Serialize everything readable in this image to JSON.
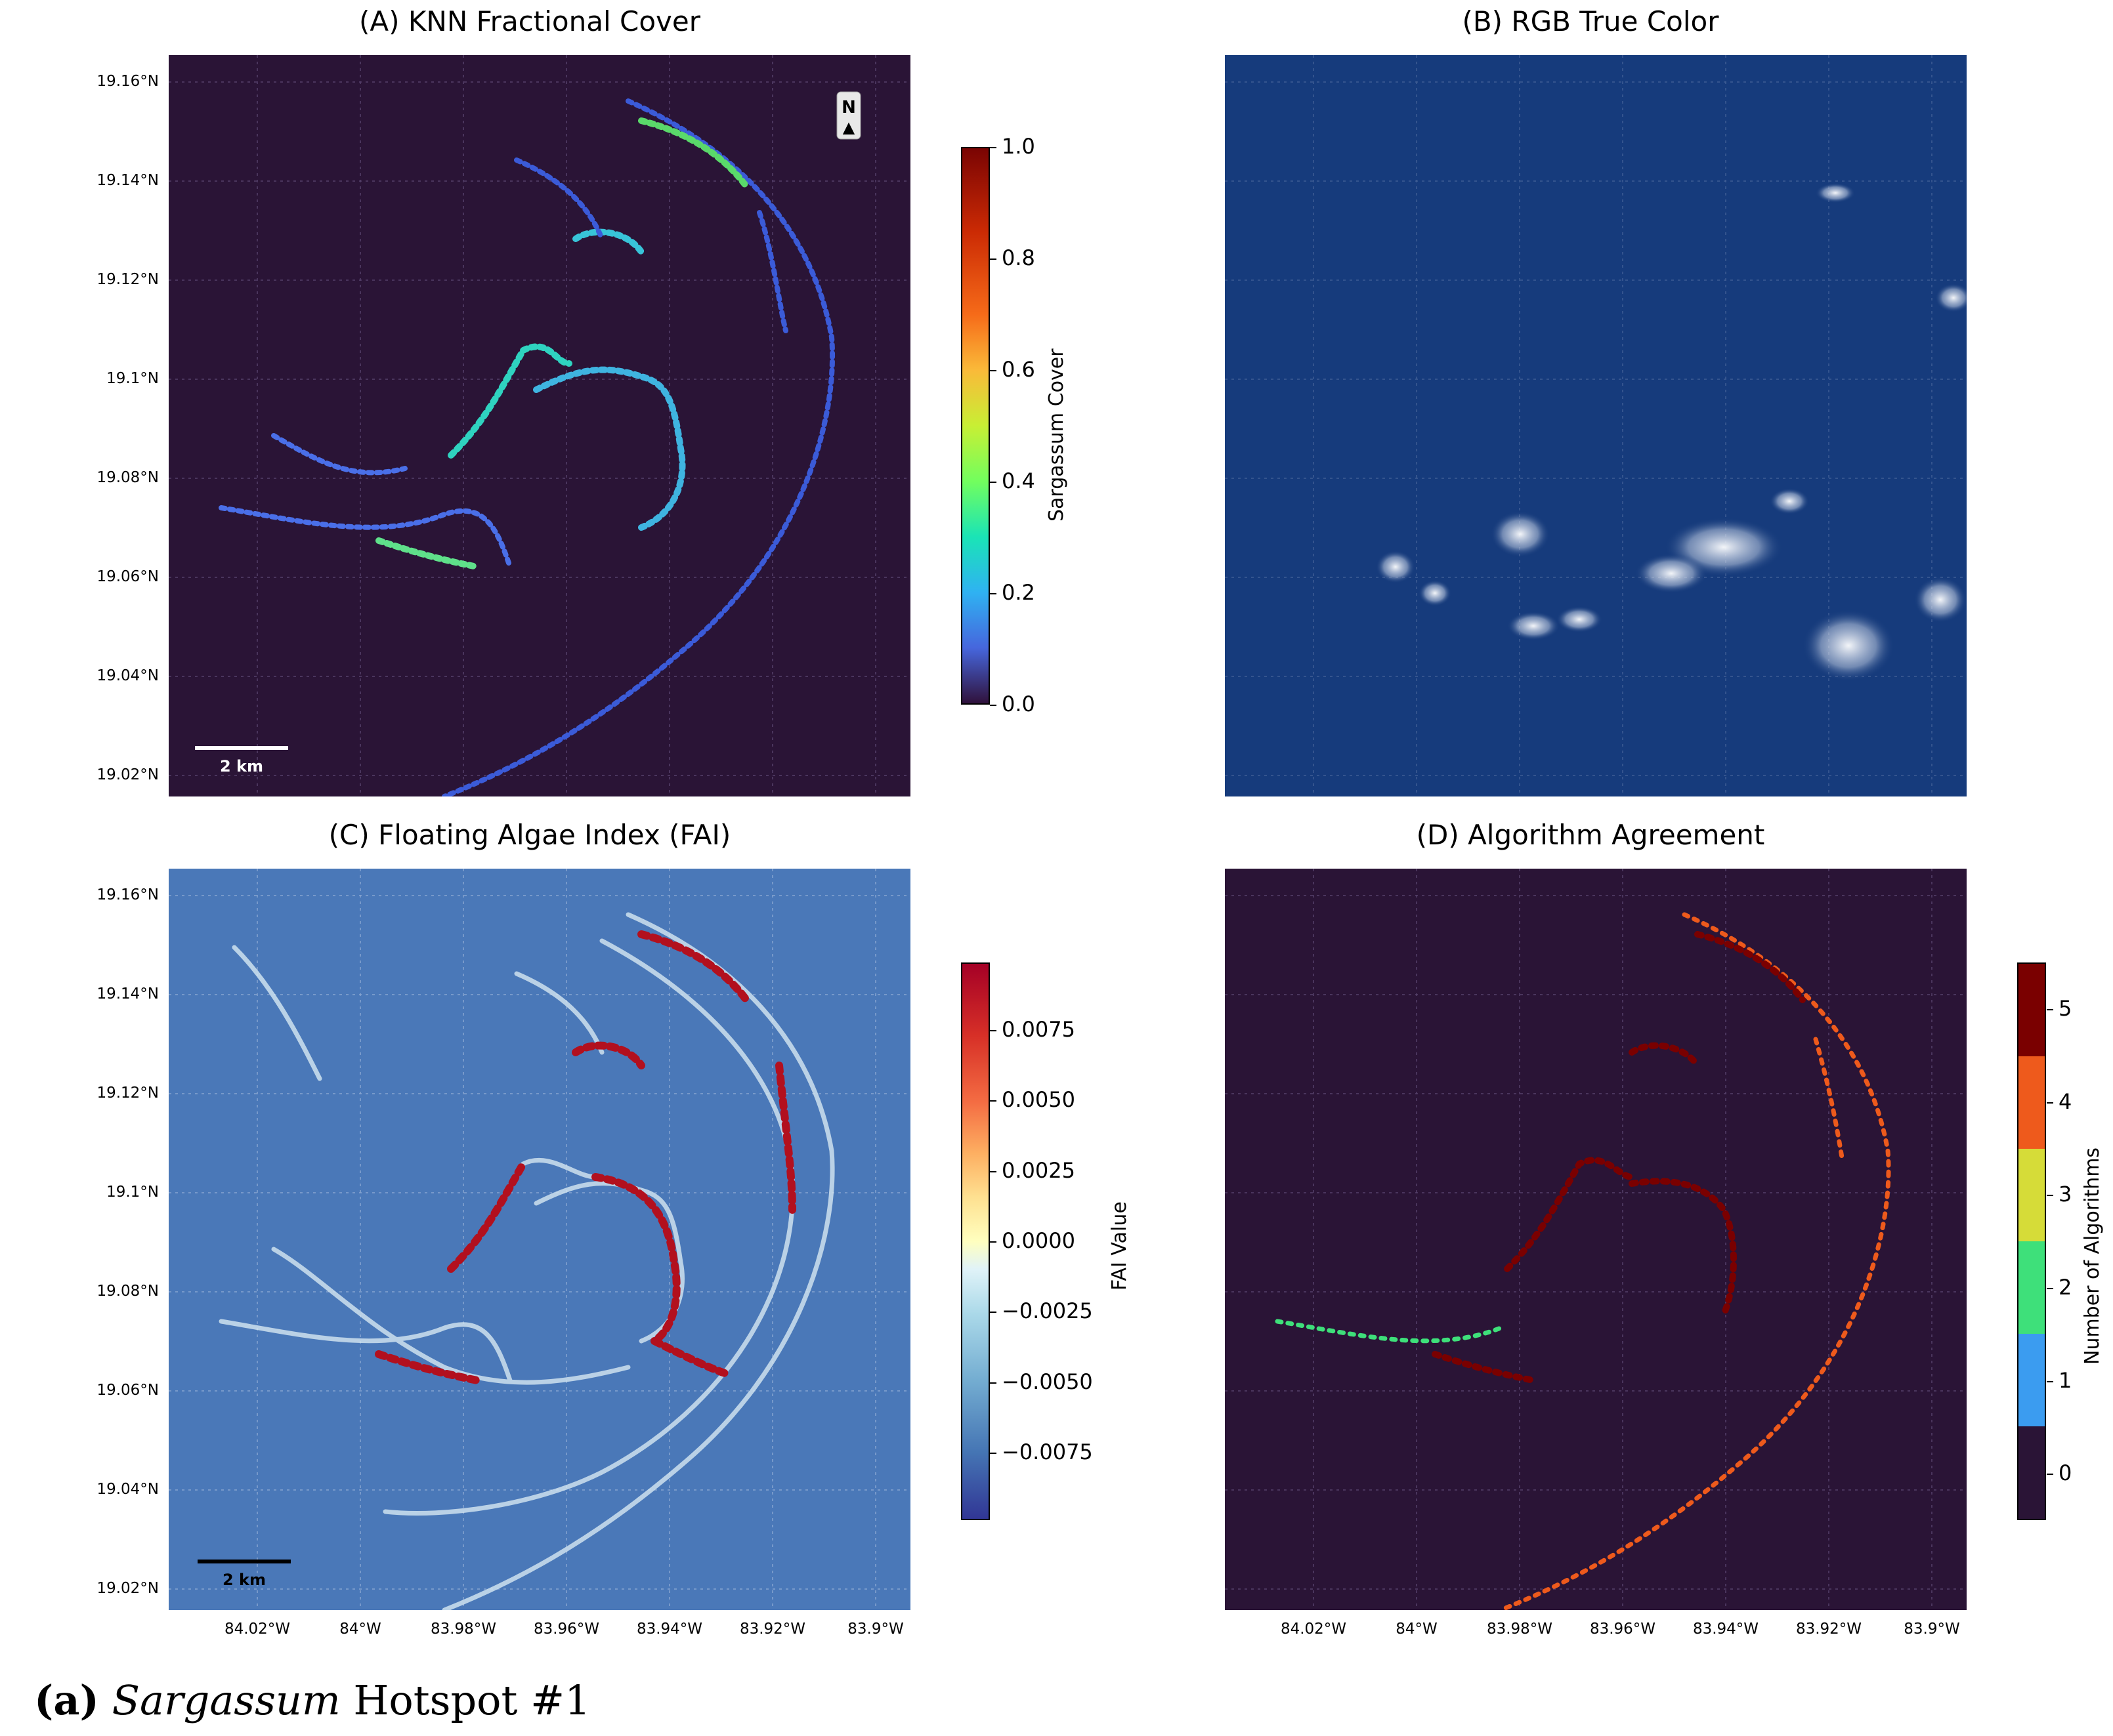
{
  "caption": {
    "letter": "(a)",
    "italic": "Sargassum",
    "rest": " Hotspot #1"
  },
  "panels": [
    {
      "title": "(A) KNN Fractional Cover"
    },
    {
      "title": "(B) RGB True Color"
    },
    {
      "title": "(C) Floating Algae Index (FAI)"
    },
    {
      "title": "(D) Algorithm Agreement"
    }
  ],
  "north_arrow": {
    "letter": "N",
    "glyph": "▲"
  },
  "scale_bar": {
    "label": "2 km"
  },
  "colorbars": {
    "knn": {
      "label": "Sargassum Cover",
      "ticks": [
        "1.0",
        "0.8",
        "0.6",
        "0.4",
        "0.2",
        "0.0"
      ]
    },
    "fai": {
      "label": "FAI Value",
      "ticks": [
        "0.0075",
        "0.0050",
        "0.0025",
        "0.0000",
        "−0.0025",
        "−0.0050",
        "−0.0075"
      ]
    },
    "agreement": {
      "label": "Number of Algorithms",
      "ticks": [
        "5",
        "4",
        "3",
        "2",
        "1",
        "0"
      ],
      "colors": [
        "#7a0000",
        "#ee5a1c",
        "#d6dc38",
        "#3ee07a",
        "#3b9cf0",
        "#2a1436"
      ]
    }
  },
  "chart_data": [
    {
      "type": "heatmap",
      "title": "(A) KNN Fractional Cover",
      "ylabel_ticks": [
        "19.16°N",
        "19.14°N",
        "19.12°N",
        "19.1°N",
        "19.08°N",
        "19.06°N",
        "19.04°N",
        "19.02°N"
      ],
      "xlabel_ticks": [],
      "colorbar": {
        "label": "Sargassum Cover",
        "range": [
          0.0,
          1.0
        ],
        "colormap": "turbo"
      },
      "background_value": 0.0,
      "grid": true
    },
    {
      "type": "heatmap",
      "title": "(B) RGB True Color",
      "ylabel_ticks": [],
      "xlabel_ticks": [],
      "grid": true
    },
    {
      "type": "heatmap",
      "title": "(C) Floating Algae Index (FAI)",
      "ylabel_ticks": [
        "19.16°N",
        "19.14°N",
        "19.12°N",
        "19.1°N",
        "19.08°N",
        "19.06°N",
        "19.04°N",
        "19.02°N"
      ],
      "xlabel_ticks": [
        "84.02°W",
        "84°W",
        "83.98°W",
        "83.96°W",
        "83.94°W",
        "83.92°W",
        "83.9°W"
      ],
      "colorbar": {
        "label": "FAI Value",
        "range": [
          -0.01,
          0.01
        ],
        "colormap": "RdYlBu_r"
      },
      "grid": true
    },
    {
      "type": "heatmap",
      "title": "(D) Algorithm Agreement",
      "ylabel_ticks": [],
      "xlabel_ticks": [
        "84.02°W",
        "84°W",
        "83.98°W",
        "83.96°W",
        "83.94°W",
        "83.92°W",
        "83.9°W"
      ],
      "colorbar": {
        "label": "Number of Algorithms",
        "levels": [
          0,
          1,
          2,
          3,
          4,
          5
        ]
      },
      "background_value": 0,
      "grid": true
    }
  ]
}
